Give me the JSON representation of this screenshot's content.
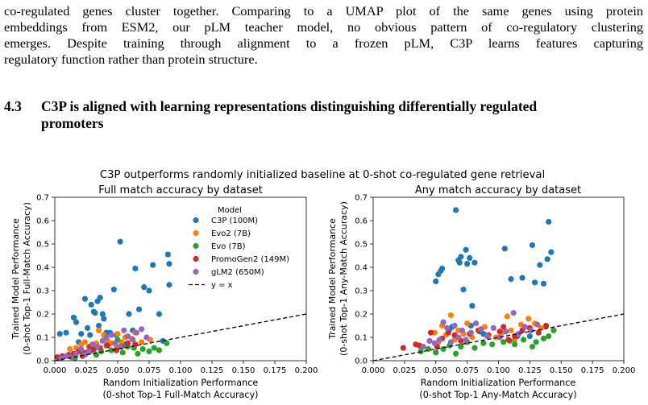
{
  "paragraph": {
    "lines": [
      "co-regulated genes cluster together. Comparing to a UMAP plot of the same genes using protein",
      "embeddings from ESM2, our pLM teacher model, no obvious pattern of co-regulatory clustering",
      "emerges.  Despite training through alignment to a frozen pLM, C3P learns features capturing",
      "regulatory function rather than protein structure."
    ]
  },
  "section": {
    "number": "4.3",
    "title_line1": "C3P is aligned with learning representations distinguishing differentially regulated",
    "title_line2": "promoters"
  },
  "figure": {
    "suptitle": "C3P outperforms randomly initialized baseline at 0-shot co-regulated gene retrieval",
    "legend_title": "Model",
    "colors": {
      "C3P (100M)": "#1f77b4",
      "Evo2 (7B)": "#ff7f0e",
      "Evo (7B)": "#2ca02c",
      "PromoGen2 (149M)": "#d62728",
      "gLM2 (650M)": "#9467bd"
    }
  },
  "chart_data": [
    {
      "type": "scatter",
      "title": "Full match accuracy by dataset",
      "xlabel_line1": "Random Initialization Performance",
      "xlabel_line2": "(0-shot Top-1 Full-Match Accuracy)",
      "ylabel_line1": "Trained Model Performance",
      "ylabel_line2": "(0-shot Top-1 Full-Match Accuracy)",
      "xlim": [
        0,
        0.2
      ],
      "ylim": [
        0,
        0.7
      ],
      "xticks": [
        "0.000",
        "0.025",
        "0.050",
        "0.075",
        "0.100",
        "0.125",
        "0.150",
        "0.175",
        "0.200"
      ],
      "yticks": [
        "0.0",
        "0.1",
        "0.2",
        "0.3",
        "0.4",
        "0.5",
        "0.6",
        "0.7"
      ],
      "grid": false,
      "legend_placement": "upper-right",
      "reference_line": {
        "label": "y = x"
      },
      "series": [
        {
          "name": "C3P (100M)",
          "points": [
            [
              0.004,
              0.115
            ],
            [
              0.009,
              0.12
            ],
            [
              0.015,
              0.185
            ],
            [
              0.017,
              0.165
            ],
            [
              0.019,
              0.08
            ],
            [
              0.021,
              0.115
            ],
            [
              0.024,
              0.265
            ],
            [
              0.026,
              0.14
            ],
            [
              0.028,
              0.11
            ],
            [
              0.029,
              0.24
            ],
            [
              0.031,
              0.21
            ],
            [
              0.032,
              0.205
            ],
            [
              0.034,
              0.255
            ],
            [
              0.035,
              0.15
            ],
            [
              0.036,
              0.27
            ],
            [
              0.038,
              0.2
            ],
            [
              0.039,
              0.18
            ],
            [
              0.041,
              0.12
            ],
            [
              0.044,
              0.12
            ],
            [
              0.047,
              0.305
            ],
            [
              0.049,
              0.11
            ],
            [
              0.052,
              0.51
            ],
            [
              0.056,
              0.07
            ],
            [
              0.059,
              0.2
            ],
            [
              0.062,
              0.13
            ],
            [
              0.064,
              0.395
            ],
            [
              0.067,
              0.22
            ],
            [
              0.071,
              0.315
            ],
            [
              0.075,
              0.3
            ],
            [
              0.078,
              0.41
            ],
            [
              0.083,
              0.2
            ],
            [
              0.086,
              0.085
            ],
            [
              0.09,
              0.455
            ],
            [
              0.091,
              0.415
            ],
            [
              0.091,
              0.325
            ]
          ]
        },
        {
          "name": "Evo2 (7B)",
          "points": [
            [
              0.012,
              0.05
            ],
            [
              0.017,
              0.055
            ],
            [
              0.021,
              0.07
            ],
            [
              0.024,
              0.08
            ],
            [
              0.027,
              0.06
            ],
            [
              0.031,
              0.045
            ],
            [
              0.033,
              0.075
            ],
            [
              0.035,
              0.13
            ],
            [
              0.039,
              0.11
            ],
            [
              0.042,
              0.085
            ],
            [
              0.045,
              0.075
            ],
            [
              0.049,
              0.06
            ],
            [
              0.05,
              0.115
            ],
            [
              0.053,
              0.08
            ],
            [
              0.056,
              0.1
            ],
            [
              0.061,
              0.095
            ],
            [
              0.064,
              0.12
            ],
            [
              0.069,
              0.08
            ],
            [
              0.076,
              0.09
            ]
          ]
        },
        {
          "name": "Evo (7B)",
          "points": [
            [
              0.016,
              0.01
            ],
            [
              0.022,
              0.035
            ],
            [
              0.028,
              0.04
            ],
            [
              0.033,
              0.025
            ],
            [
              0.037,
              0.04
            ],
            [
              0.041,
              0.065
            ],
            [
              0.045,
              0.045
            ],
            [
              0.05,
              0.09
            ],
            [
              0.054,
              0.035
            ],
            [
              0.058,
              0.06
            ],
            [
              0.063,
              0.055
            ],
            [
              0.066,
              0.03
            ],
            [
              0.07,
              0.05
            ],
            [
              0.075,
              0.04
            ],
            [
              0.079,
              0.055
            ],
            [
              0.083,
              0.045
            ],
            [
              0.089,
              0.075
            ]
          ]
        },
        {
          "name": "PromoGen2 (149M)",
          "points": [
            [
              0.002,
              0.015
            ],
            [
              0.006,
              0.02
            ],
            [
              0.011,
              0.025
            ],
            [
              0.015,
              0.03
            ],
            [
              0.019,
              0.04
            ],
            [
              0.022,
              0.02
            ],
            [
              0.025,
              0.035
            ],
            [
              0.028,
              0.06
            ],
            [
              0.031,
              0.05
            ],
            [
              0.036,
              0.055
            ],
            [
              0.042,
              0.065
            ],
            [
              0.049,
              0.045
            ],
            [
              0.053,
              0.06
            ],
            [
              0.058,
              0.075
            ],
            [
              0.064,
              0.07
            ]
          ]
        },
        {
          "name": "gLM2 (650M)",
          "points": [
            [
              0.005,
              0.01
            ],
            [
              0.009,
              0.02
            ],
            [
              0.013,
              0.015
            ],
            [
              0.017,
              0.03
            ],
            [
              0.021,
              0.05
            ],
            [
              0.024,
              0.025
            ],
            [
              0.027,
              0.04
            ],
            [
              0.03,
              0.07
            ],
            [
              0.034,
              0.06
            ],
            [
              0.038,
              0.085
            ],
            [
              0.041,
              0.1
            ],
            [
              0.045,
              0.11
            ],
            [
              0.048,
              0.075
            ],
            [
              0.052,
              0.06
            ],
            [
              0.055,
              0.13
            ],
            [
              0.058,
              0.105
            ],
            [
              0.062,
              0.09
            ],
            [
              0.065,
              0.12
            ],
            [
              0.069,
              0.135
            ],
            [
              0.073,
              0.1
            ]
          ]
        }
      ]
    },
    {
      "type": "scatter",
      "title": "Any match accuracy by dataset",
      "xlabel_line1": "Random Initialization Performance",
      "xlabel_line2": "(0-shot Top-1 Any-Match Accuracy)",
      "ylabel_line1": "Trained Model Performance",
      "ylabel_line2": "(0-shot Top-1 Any-Match Accuracy)",
      "xlim": [
        0,
        0.2
      ],
      "ylim": [
        0,
        0.7
      ],
      "xticks": [
        "0.000",
        "0.025",
        "0.050",
        "0.075",
        "0.100",
        "0.125",
        "0.150",
        "0.175",
        "0.200"
      ],
      "yticks": [
        "0.0",
        "0.1",
        "0.2",
        "0.3",
        "0.4",
        "0.5",
        "0.6",
        "0.7"
      ],
      "grid": false,
      "reference_line": {
        "label": "y = x"
      },
      "series": [
        {
          "name": "C3P (100M)",
          "points": [
            [
              0.05,
              0.34
            ],
            [
              0.052,
              0.37
            ],
            [
              0.054,
              0.385
            ],
            [
              0.055,
              0.395
            ],
            [
              0.061,
              0.135
            ],
            [
              0.063,
              0.145
            ],
            [
              0.066,
              0.645
            ],
            [
              0.068,
              0.43
            ],
            [
              0.069,
              0.42
            ],
            [
              0.07,
              0.445
            ],
            [
              0.072,
              0.305
            ],
            [
              0.074,
              0.475
            ],
            [
              0.075,
              0.415
            ],
            [
              0.077,
              0.44
            ],
            [
              0.078,
              0.15
            ],
            [
              0.079,
              0.235
            ],
            [
              0.081,
              0.42
            ],
            [
              0.085,
              0.125
            ],
            [
              0.088,
              0.115
            ],
            [
              0.105,
              0.48
            ],
            [
              0.11,
              0.35
            ],
            [
              0.115,
              0.105
            ],
            [
              0.119,
              0.355
            ],
            [
              0.125,
              0.105
            ],
            [
              0.127,
              0.495
            ],
            [
              0.129,
              0.335
            ],
            [
              0.133,
              0.41
            ],
            [
              0.136,
              0.33
            ],
            [
              0.139,
              0.435
            ],
            [
              0.14,
              0.595
            ],
            [
              0.142,
              0.465
            ]
          ]
        },
        {
          "name": "Evo2 (7B)",
          "points": [
            [
              0.049,
              0.12
            ],
            [
              0.052,
              0.08
            ],
            [
              0.055,
              0.15
            ],
            [
              0.058,
              0.11
            ],
            [
              0.062,
              0.195
            ],
            [
              0.065,
              0.09
            ],
            [
              0.068,
              0.13
            ],
            [
              0.072,
              0.115
            ],
            [
              0.075,
              0.16
            ],
            [
              0.079,
              0.1
            ],
            [
              0.084,
              0.13
            ],
            [
              0.089,
              0.145
            ],
            [
              0.098,
              0.1
            ],
            [
              0.103,
              0.12
            ],
            [
              0.107,
              0.19
            ],
            [
              0.11,
              0.13
            ],
            [
              0.113,
              0.09
            ],
            [
              0.118,
              0.155
            ],
            [
              0.124,
              0.18
            ],
            [
              0.129,
              0.16
            ],
            [
              0.134,
              0.14
            ]
          ]
        },
        {
          "name": "Evo (7B)",
          "points": [
            [
              0.038,
              0.04
            ],
            [
              0.044,
              0.05
            ],
            [
              0.05,
              0.035
            ],
            [
              0.056,
              0.05
            ],
            [
              0.061,
              0.065
            ],
            [
              0.066,
              0.03
            ],
            [
              0.07,
              0.06
            ],
            [
              0.075,
              0.08
            ],
            [
              0.081,
              0.055
            ],
            [
              0.088,
              0.075
            ],
            [
              0.095,
              0.07
            ],
            [
              0.104,
              0.08
            ],
            [
              0.109,
              0.085
            ],
            [
              0.113,
              0.07
            ],
            [
              0.12,
              0.09
            ],
            [
              0.127,
              0.06
            ],
            [
              0.13,
              0.08
            ],
            [
              0.136,
              0.095
            ],
            [
              0.14,
              0.105
            ],
            [
              0.144,
              0.13
            ]
          ]
        },
        {
          "name": "PromoGen2 (149M)",
          "points": [
            [
              0.024,
              0.055
            ],
            [
              0.034,
              0.07
            ],
            [
              0.037,
              0.065
            ],
            [
              0.046,
              0.12
            ],
            [
              0.051,
              0.06
            ],
            [
              0.055,
              0.095
            ],
            [
              0.06,
              0.12
            ],
            [
              0.065,
              0.11
            ],
            [
              0.07,
              0.085
            ],
            [
              0.077,
              0.115
            ],
            [
              0.084,
              0.13
            ],
            [
              0.092,
              0.11
            ],
            [
              0.101,
              0.125
            ],
            [
              0.104,
              0.145
            ],
            [
              0.108,
              0.09
            ],
            [
              0.113,
              0.105
            ],
            [
              0.119,
              0.13
            ],
            [
              0.125,
              0.14
            ],
            [
              0.132,
              0.12
            ],
            [
              0.138,
              0.15
            ]
          ]
        },
        {
          "name": "gLM2 (650M)",
          "points": [
            [
              0.04,
              0.06
            ],
            [
              0.045,
              0.085
            ],
            [
              0.049,
              0.075
            ],
            [
              0.053,
              0.09
            ],
            [
              0.056,
              0.165
            ],
            [
              0.059,
              0.14
            ],
            [
              0.062,
              0.08
            ],
            [
              0.065,
              0.15
            ],
            [
              0.068,
              0.1
            ],
            [
              0.071,
              0.13
            ],
            [
              0.074,
              0.09
            ],
            [
              0.078,
              0.12
            ],
            [
              0.082,
              0.16
            ],
            [
              0.086,
              0.135
            ],
            [
              0.091,
              0.105
            ],
            [
              0.096,
              0.14
            ],
            [
              0.101,
              0.1
            ],
            [
              0.106,
              0.125
            ],
            [
              0.112,
              0.205
            ],
            [
              0.116,
              0.115
            ],
            [
              0.121,
              0.145
            ],
            [
              0.126,
              0.13
            ],
            [
              0.131,
              0.155
            ]
          ]
        }
      ]
    }
  ]
}
